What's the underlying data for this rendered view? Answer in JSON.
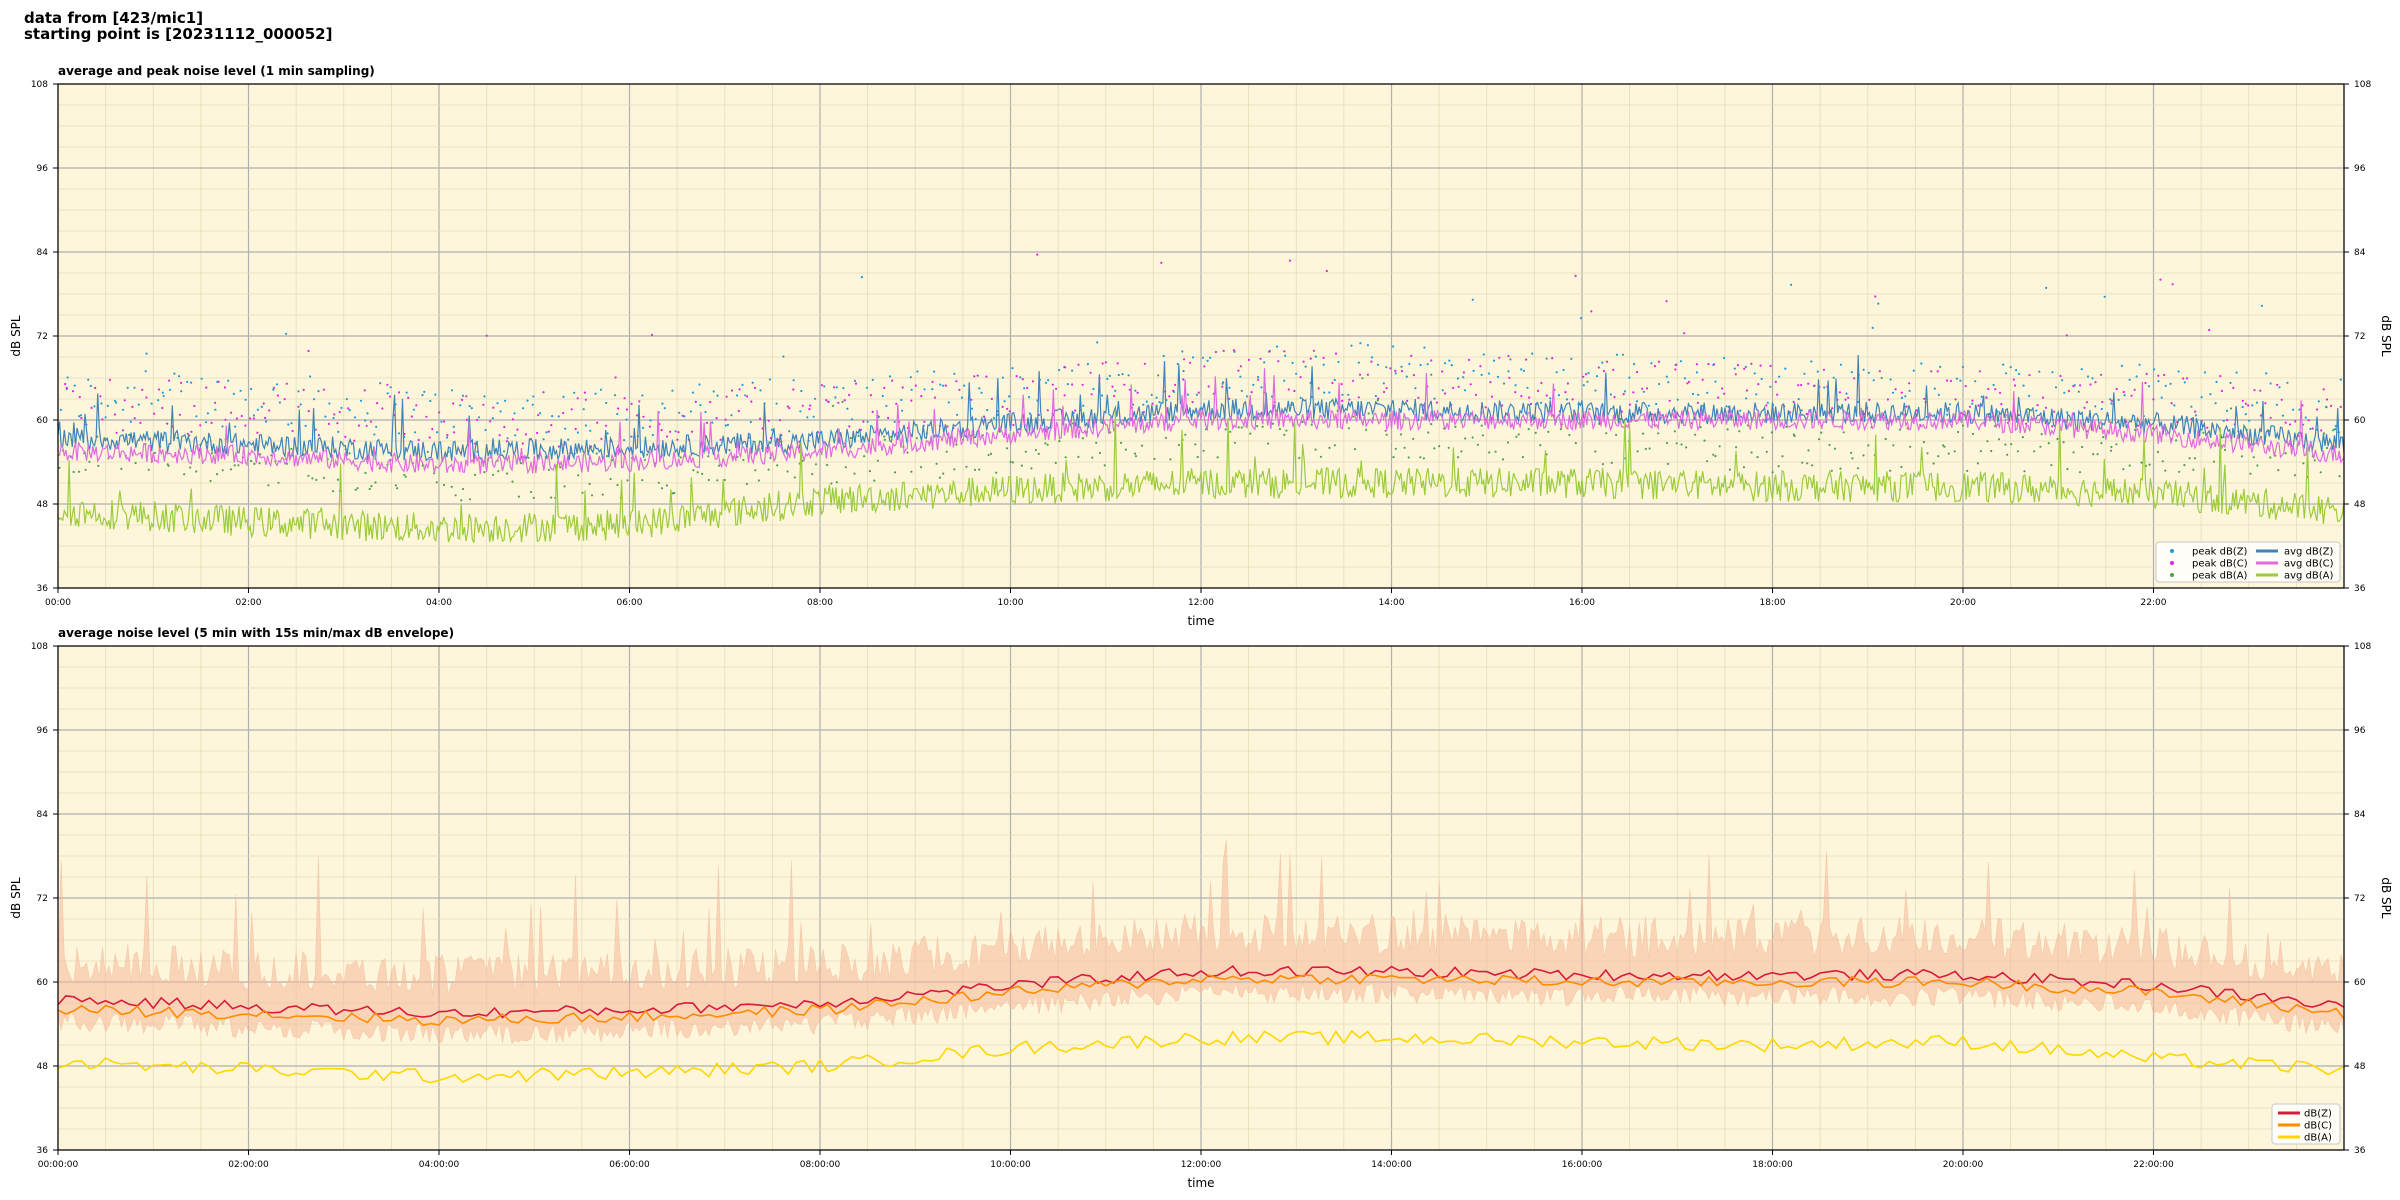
{
  "figure": {
    "title_line1": "data from [423/mic1]",
    "title_line2": "starting point is [20231112_000052]"
  },
  "style": {
    "plot_bg": "#fdf6da",
    "major_grid": "#b0b0b0",
    "minor_grid": "#e6dcb8"
  },
  "chart_data": [
    {
      "type": "line",
      "title": "average and peak noise level (1 min sampling)",
      "xlabel": "time",
      "ylabel": "dB SPL",
      "ylabel_right": "dB SPL",
      "xlim_hours": [
        0,
        24
      ],
      "ylim": [
        36,
        108
      ],
      "yticks": [
        36,
        48,
        60,
        72,
        84,
        96,
        108
      ],
      "xtick_labels": [
        "00:00",
        "02:00",
        "04:00",
        "06:00",
        "08:00",
        "10:00",
        "12:00",
        "14:00",
        "16:00",
        "18:00",
        "20:00",
        "22:00"
      ],
      "grid": true,
      "legend_position": "bottom-right",
      "legend_columns": 2,
      "series": [
        {
          "name": "peak dB(Z)",
          "kind": "scatter",
          "color": "#1f9bd7",
          "hours": [
            0,
            2,
            4,
            6,
            8,
            10,
            12,
            14,
            16,
            18,
            20,
            22,
            24
          ],
          "base": [
            63,
            63,
            61,
            61,
            62,
            64,
            67,
            67,
            66,
            65,
            64,
            64,
            62
          ],
          "amp": 4,
          "spikes": 18
        },
        {
          "name": "peak dB(C)",
          "kind": "scatter",
          "color": "#e524e0",
          "hours": [
            0,
            2,
            4,
            6,
            8,
            10,
            12,
            14,
            16,
            18,
            20,
            22,
            24
          ],
          "base": [
            62,
            62,
            60,
            60,
            61,
            63,
            66,
            66,
            65,
            64,
            63,
            63,
            61
          ],
          "amp": 4,
          "spikes": 18
        },
        {
          "name": "peak dB(A)",
          "kind": "scatter",
          "color": "#4fa04f",
          "hours": [
            0,
            2,
            4,
            6,
            8,
            10,
            12,
            14,
            16,
            18,
            20,
            22,
            24
          ],
          "base": [
            55,
            54,
            52,
            52,
            54,
            56,
            58,
            58,
            57,
            56,
            56,
            56,
            55
          ],
          "amp": 3.5,
          "spikes": 10
        },
        {
          "name": "avg dB(Z)",
          "kind": "line",
          "color": "#3f83b8",
          "hours": [
            0,
            2,
            4,
            6,
            8,
            10,
            12,
            14,
            16,
            18,
            20,
            22,
            24
          ],
          "values": [
            57.5,
            56.5,
            55.5,
            56,
            57,
            59.5,
            61.5,
            61.5,
            61,
            61,
            61,
            59.5,
            56.5
          ],
          "amp": 1.6,
          "spikes": 7
        },
        {
          "name": "avg dB(C)",
          "kind": "line",
          "color": "#e06be0",
          "hours": [
            0,
            2,
            4,
            6,
            8,
            10,
            12,
            14,
            16,
            18,
            20,
            22,
            24
          ],
          "values": [
            55.5,
            55,
            53.5,
            54,
            55.5,
            58,
            60,
            60,
            60,
            60,
            60,
            58,
            55
          ],
          "amp": 1.4,
          "spikes": 7
        },
        {
          "name": "avg dB(A)",
          "kind": "line",
          "color": "#9bcc3c",
          "hours": [
            0,
            2,
            4,
            6,
            8,
            10,
            12,
            14,
            16,
            18,
            20,
            22,
            24
          ],
          "values": [
            47,
            45.5,
            44.5,
            45,
            48.5,
            50,
            51,
            51,
            51,
            50.5,
            50.5,
            49.5,
            47
          ],
          "amp": 2.2,
          "spikes": 9
        }
      ]
    },
    {
      "type": "line",
      "title": "average noise level (5 min with 15s min/max dB envelope)",
      "xlabel": "time",
      "ylabel": "dB SPL",
      "ylabel_right": "dB SPL",
      "xlim_hours": [
        0,
        24
      ],
      "ylim": [
        36,
        108
      ],
      "yticks": [
        36,
        48,
        60,
        72,
        84,
        96,
        108
      ],
      "xtick_labels": [
        "00:00:00",
        "02:00:00",
        "04:00:00",
        "06:00:00",
        "08:00:00",
        "10:00:00",
        "12:00:00",
        "14:00:00",
        "16:00:00",
        "18:00:00",
        "20:00:00",
        "22:00:00"
      ],
      "grid": true,
      "legend_position": "bottom-right",
      "envelope": {
        "color": "#f5b89a",
        "upper_offset": 6,
        "lower_offset": -3,
        "spikes": 14
      },
      "series": [
        {
          "name": "dB(Z)",
          "color": "#d81b3b",
          "hours": [
            0,
            2,
            4,
            6,
            8,
            10,
            12,
            14,
            16,
            18,
            20,
            22,
            24
          ],
          "values": [
            57.5,
            56.5,
            55.5,
            56,
            57,
            59.5,
            61.5,
            61.5,
            61,
            61,
            61,
            59.5,
            56.5
          ],
          "amp": 0.8
        },
        {
          "name": "dB(C)",
          "color": "#ff8c00",
          "hours": [
            0,
            2,
            4,
            6,
            8,
            10,
            12,
            14,
            16,
            18,
            20,
            22,
            24
          ],
          "values": [
            56,
            55.5,
            54.5,
            55,
            56,
            58.5,
            60.5,
            60.5,
            60,
            60,
            60,
            58.5,
            55.5
          ],
          "amp": 0.8
        },
        {
          "name": "dB(A)",
          "color": "#ffd700",
          "hours": [
            0,
            2,
            4,
            6,
            8,
            10,
            12,
            14,
            16,
            18,
            20,
            22,
            24
          ],
          "values": [
            48.5,
            47.5,
            46.5,
            47,
            48,
            50.5,
            52,
            52,
            51.5,
            51,
            51.5,
            49,
            47.5
          ],
          "amp": 1.0
        }
      ]
    }
  ]
}
